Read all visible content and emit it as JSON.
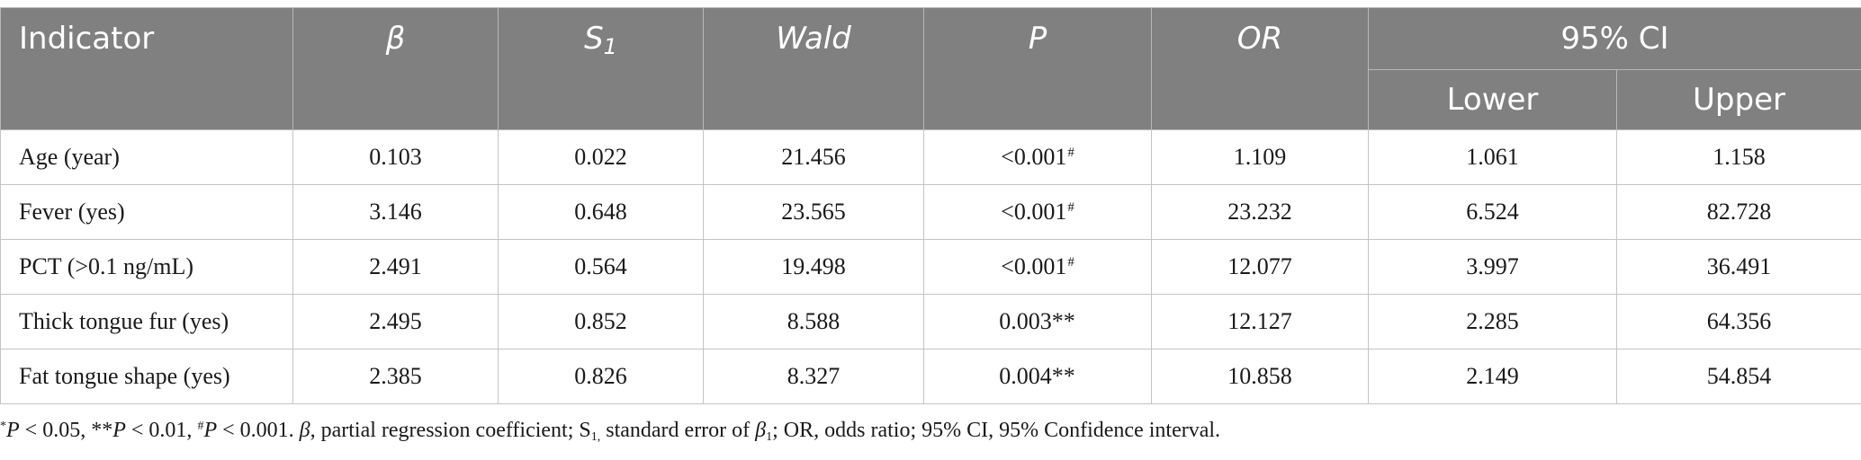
{
  "table": {
    "headers": {
      "indicator": "Indicator",
      "beta": "β",
      "s_main": "S",
      "s_sub": "1",
      "wald": "Wald",
      "p": "P",
      "or": "OR",
      "ci": "95% CI",
      "lower": "Lower",
      "upper": "Upper"
    },
    "rows": [
      {
        "indicator": "Age (year)",
        "beta": "0.103",
        "s1": "0.022",
        "wald": "21.456",
        "p": "<0.001",
        "p_mark": "#",
        "or": "1.109",
        "lower": "1.061",
        "upper": "1.158"
      },
      {
        "indicator": "Fever (yes)",
        "beta": "3.146",
        "s1": "0.648",
        "wald": "23.565",
        "p": "<0.001",
        "p_mark": "#",
        "or": "23.232",
        "lower": "6.524",
        "upper": "82.728"
      },
      {
        "indicator": "PCT (>0.1 ng/mL)",
        "beta": "2.491",
        "s1": "0.564",
        "wald": "19.498",
        "p": "<0.001",
        "p_mark": "#",
        "or": "12.077",
        "lower": "3.997",
        "upper": "36.491"
      },
      {
        "indicator": "Thick tongue fur (yes)",
        "beta": "2.495",
        "s1": "0.852",
        "wald": "8.588",
        "p": "0.003**",
        "p_mark": "",
        "or": "12.127",
        "lower": "2.285",
        "upper": "64.356"
      },
      {
        "indicator": "Fat tongue shape (yes)",
        "beta": "2.385",
        "s1": "0.826",
        "wald": "8.327",
        "p": "0.004**",
        "p_mark": "",
        "or": "10.858",
        "lower": "2.149",
        "upper": "54.854"
      }
    ]
  },
  "footnote": {
    "f1_star": "*",
    "f1_p": "P",
    "f1_lt": " < 0.05, **",
    "f2_p": "P",
    "f2_lt": " < 0.01, ",
    "f3_mark": "#",
    "f3_p": "P",
    "f3_lt": " < 0.001. ",
    "beta_sym": "β",
    "beta_def": ", partial regression coefficient; S",
    "s_sub": "1,",
    "s_def": " standard error of ",
    "beta1_sym": "β",
    "beta1_sub": "1",
    "rest": "; OR, odds ratio; 95% CI, 95% Confidence interval."
  }
}
